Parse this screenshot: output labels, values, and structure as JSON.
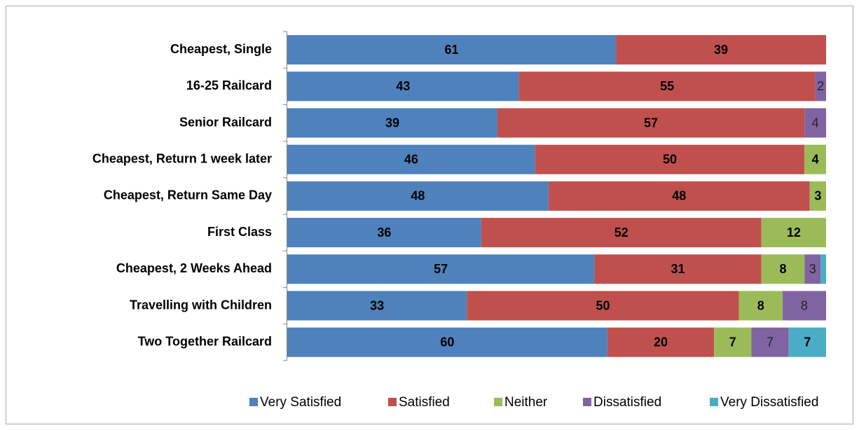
{
  "chart_data": {
    "type": "bar",
    "orientation": "horizontal",
    "stacking": "percent",
    "categories": [
      "Cheapest, Single",
      "16-25 Railcard",
      "Senior Railcard",
      "Cheapest, Return 1 week later",
      "Cheapest, Return Same Day",
      "First Class",
      "Cheapest, 2 Weeks Ahead",
      "Travelling with Children",
      "Two Together Railcard"
    ],
    "series": [
      {
        "name": "Very Satisfied",
        "color": "#4f81bd",
        "values": [
          61,
          43,
          39,
          46,
          48,
          36,
          57,
          33,
          60
        ]
      },
      {
        "name": "Satisfied",
        "color": "#c0504d",
        "values": [
          39,
          55,
          57,
          50,
          48,
          52,
          31,
          50,
          20
        ]
      },
      {
        "name": "Neither",
        "color": "#9bbb59",
        "values": [
          null,
          null,
          null,
          4,
          3,
          12,
          8,
          8,
          7
        ]
      },
      {
        "name": "Dissatisfied",
        "color": "#8064a2",
        "values": [
          null,
          2,
          4,
          null,
          null,
          null,
          3,
          8,
          7
        ]
      },
      {
        "name": "Very Dissatisfied",
        "color": "#4bacc6",
        "values": [
          null,
          null,
          null,
          null,
          null,
          null,
          1,
          null,
          7
        ]
      }
    ],
    "legend": "bottom"
  }
}
